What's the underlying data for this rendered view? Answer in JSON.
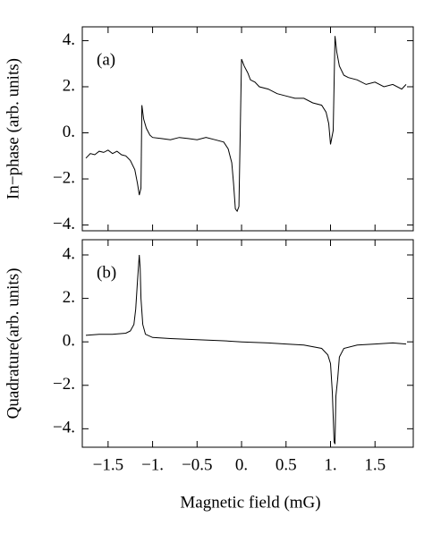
{
  "chart_data": [
    {
      "type": "line",
      "ylabel": "In−phase (arb. units)",
      "annotation": "(a)",
      "color": "#000000",
      "xlim": [
        -1.79,
        1.93
      ],
      "ylim": [
        -4.25,
        4.6
      ],
      "xticks": [
        -1.5,
        -1,
        -0.5,
        0,
        0.5,
        1,
        1.5
      ],
      "yticks": [
        {
          "value": -4,
          "label": "−4."
        },
        {
          "value": -2,
          "label": "−2."
        },
        {
          "value": 0,
          "label": "0."
        },
        {
          "value": 2,
          "label": "2."
        },
        {
          "value": 4,
          "label": "4."
        }
      ],
      "x": [
        -1.75,
        -1.7,
        -1.65,
        -1.6,
        -1.55,
        -1.5,
        -1.45,
        -1.4,
        -1.35,
        -1.3,
        -1.25,
        -1.2,
        -1.17,
        -1.15,
        -1.13,
        -1.12,
        -1.1,
        -1.07,
        -1.03,
        -1.0,
        -0.9,
        -0.8,
        -0.7,
        -0.6,
        -0.5,
        -0.4,
        -0.3,
        -0.2,
        -0.15,
        -0.11,
        -0.09,
        -0.07,
        -0.05,
        -0.03,
        0.0,
        0.03,
        0.07,
        0.1,
        0.15,
        0.2,
        0.3,
        0.4,
        0.5,
        0.6,
        0.7,
        0.8,
        0.9,
        0.95,
        0.98,
        1.0,
        1.03,
        1.05,
        1.07,
        1.1,
        1.15,
        1.2,
        1.3,
        1.4,
        1.5,
        1.6,
        1.7,
        1.8,
        1.85
      ],
      "values": [
        -1.1,
        -0.9,
        -0.95,
        -0.8,
        -0.85,
        -0.75,
        -0.9,
        -0.8,
        -0.95,
        -1.0,
        -1.2,
        -1.6,
        -2.2,
        -2.7,
        -2.4,
        1.2,
        0.6,
        0.2,
        -0.1,
        -0.2,
        -0.25,
        -0.3,
        -0.2,
        -0.25,
        -0.3,
        -0.2,
        -0.3,
        -0.4,
        -0.7,
        -1.3,
        -2.2,
        -3.3,
        -3.4,
        -3.2,
        3.2,
        2.9,
        2.6,
        2.3,
        2.2,
        2.0,
        1.9,
        1.7,
        1.6,
        1.5,
        1.5,
        1.3,
        1.2,
        0.9,
        0.4,
        -0.5,
        0.1,
        4.2,
        3.5,
        2.9,
        2.5,
        2.4,
        2.3,
        2.1,
        2.2,
        2.0,
        2.1,
        1.9,
        2.1
      ]
    },
    {
      "type": "line",
      "ylabel": "Quadrature(arb. units)",
      "annotation": "(b)",
      "xlabel": "Magnetic field (mG)",
      "color": "#000000",
      "xlim": [
        -1.79,
        1.93
      ],
      "ylim": [
        -4.85,
        4.7
      ],
      "xticks": [
        {
          "value": -1.5,
          "label": "−1.5"
        },
        {
          "value": -1,
          "label": "−1."
        },
        {
          "value": -0.5,
          "label": "−0.5"
        },
        {
          "value": 0,
          "label": "0."
        },
        0.5,
        {
          "value": 1,
          "label": "1."
        },
        1.5
      ],
      "yticks": [
        {
          "value": -4,
          "label": "−4."
        },
        {
          "value": -2,
          "label": "−2."
        },
        {
          "value": 0,
          "label": "0."
        },
        {
          "value": 2,
          "label": "2."
        },
        {
          "value": 4,
          "label": "4."
        }
      ],
      "x": [
        -1.75,
        -1.6,
        -1.45,
        -1.3,
        -1.25,
        -1.21,
        -1.19,
        -1.17,
        -1.15,
        -1.14,
        -1.13,
        -1.11,
        -1.08,
        -1.0,
        -0.8,
        -0.5,
        -0.2,
        0.0,
        0.3,
        0.5,
        0.7,
        0.9,
        0.97,
        1.0,
        1.02,
        1.04,
        1.05,
        1.06,
        1.08,
        1.1,
        1.15,
        1.3,
        1.5,
        1.7,
        1.85
      ],
      "values": [
        0.3,
        0.35,
        0.35,
        0.4,
        0.5,
        0.8,
        1.5,
        2.8,
        4.0,
        3.4,
        2.0,
        0.8,
        0.35,
        0.2,
        0.15,
        0.1,
        0.05,
        0.0,
        -0.05,
        -0.1,
        -0.15,
        -0.3,
        -0.6,
        -1.0,
        -2.3,
        -4.6,
        -4.7,
        -2.5,
        -1.7,
        -0.7,
        -0.3,
        -0.15,
        -0.1,
        -0.05,
        -0.1
      ]
    }
  ]
}
